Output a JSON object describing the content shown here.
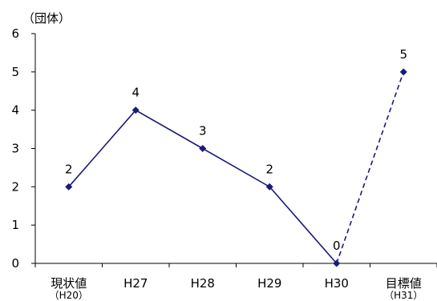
{
  "chart_data": {
    "type": "line",
    "unit_label": "（団体）",
    "categories": [
      {
        "label": "現状値",
        "sub": "（H20）"
      },
      {
        "label": "H27",
        "sub": ""
      },
      {
        "label": "H28",
        "sub": ""
      },
      {
        "label": "H29",
        "sub": ""
      },
      {
        "label": "H30",
        "sub": ""
      },
      {
        "label": "目標値",
        "sub": "（H31）"
      }
    ],
    "values": [
      2,
      4,
      3,
      2,
      0,
      5
    ],
    "data_labels": [
      "2",
      "4",
      "3",
      "2",
      "0",
      "5"
    ],
    "dashed_from_index": 4,
    "ylim": [
      0,
      6
    ],
    "yticks": [
      0,
      1,
      2,
      3,
      4,
      5,
      6
    ],
    "grid": false,
    "legend": "none",
    "colors": {
      "line": "#1a1a7a",
      "marker": "#1a1a7a",
      "axis": "#000000"
    }
  }
}
